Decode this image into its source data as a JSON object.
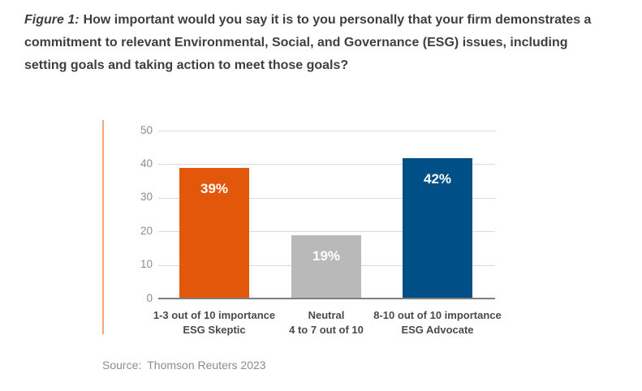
{
  "header": {
    "figure_label": "Figure 1:",
    "question": "How important would you say it is to you personally that your firm demonstrates a commitment to relevant Environmental, Social, and Governance (ESG) issues, including setting goals and taking action to meet those goals?"
  },
  "chart_data": {
    "type": "bar",
    "title": "Figure 1: How important would you say it is to you personally that your firm demonstrates a commitment to relevant Environmental, Social, and Governance (ESG) issues, including setting goals and taking action to meet those goals?",
    "categories": [
      "1-3 out of 10 importance",
      "Neutral",
      "8-10 out of 10 importance"
    ],
    "category_sublabels": [
      "ESG Skeptic",
      "4 to 7 out of 10",
      "ESG Advocate"
    ],
    "values": [
      39,
      19,
      42
    ],
    "data_labels": [
      "39%",
      "19%",
      "42%"
    ],
    "bar_colors": [
      "#e2570a",
      "#b9b9b9",
      "#004f87"
    ],
    "ylim": [
      0,
      50
    ],
    "yticks": [
      0,
      10,
      20,
      30,
      40,
      50
    ],
    "grid": true,
    "legend": false,
    "xlabel": "",
    "ylabel": "",
    "colors": {
      "grid_line": "#d9d9d9",
      "axis_line": "#7f7f7f",
      "tick_label": "#8c8c8c",
      "category_label": "#4a4a4a",
      "title_text": "#3f3f3f",
      "accent_line": "#f3a876",
      "data_label": "#ffffff"
    }
  },
  "footer": {
    "source_label": "Source:",
    "source_text": "Thomson Reuters 2023"
  }
}
